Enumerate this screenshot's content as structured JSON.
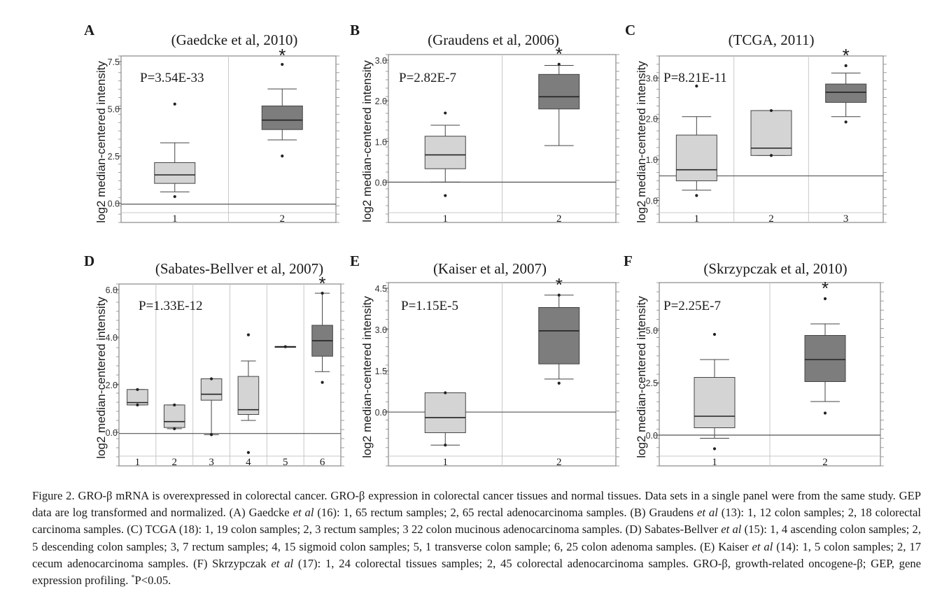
{
  "figure": {
    "colors": {
      "normal_box": "#d4d4d4",
      "tumor_box": "#7d7d7d",
      "frame": "#888888",
      "grid": "#c8c8c8"
    }
  },
  "chart_data": [
    {
      "type": "box",
      "panel": "A",
      "title": "(Gaedcke et al, 2010)",
      "ylabel": "log2 median-centered intensity",
      "pvalue": "P=3.54E-33",
      "yticks": [
        "0.0",
        "2.5",
        "5.0",
        "7.5"
      ],
      "ylim": [
        -0.5,
        7.5
      ],
      "baseline": -0.05,
      "significance": {
        "group": 2,
        "label": "*"
      },
      "groups": [
        {
          "label": "1",
          "min": 0.6,
          "q1": 1.05,
          "median": 1.5,
          "q3": 2.15,
          "max": 3.2,
          "outliers": [
            5.25,
            0.35
          ],
          "color": "normal"
        },
        {
          "label": "2",
          "min": 3.35,
          "q1": 3.9,
          "median": 4.4,
          "q3": 5.15,
          "max": 6.05,
          "outliers": [
            7.35,
            2.5
          ],
          "color": "tumor"
        }
      ]
    },
    {
      "type": "box",
      "panel": "B",
      "title": "(Graudens et al, 2006)",
      "ylabel": "log2 median-centered intensity",
      "pvalue": "P=2.82E-7",
      "yticks": [
        "0.0",
        "1.0",
        "2.0",
        "3.0"
      ],
      "ylim": [
        -0.75,
        3.0
      ],
      "baseline": 0.0,
      "significance": {
        "group": 2,
        "label": "*"
      },
      "groups": [
        {
          "label": "1",
          "min": 0.0,
          "q1": 0.33,
          "median": 0.67,
          "q3": 1.13,
          "max": 1.4,
          "outliers": [
            1.7,
            -0.33
          ],
          "color": "normal"
        },
        {
          "label": "2",
          "min": 0.9,
          "q1": 1.8,
          "median": 2.1,
          "q3": 2.65,
          "max": 2.87,
          "outliers": [
            2.9
          ],
          "color": "tumor"
        }
      ]
    },
    {
      "type": "box",
      "panel": "C",
      "title": "(TCGA, 2011)",
      "ylabel": "log2 median-centered intensity",
      "pvalue": "P=8.21E-11",
      "yticks": [
        "0.0",
        "1.0",
        "2.0",
        "3.0"
      ],
      "ylim": [
        -0.3,
        3.4
      ],
      "baseline": 0.6,
      "significance": {
        "group": 3,
        "label": "*"
      },
      "groups": [
        {
          "label": "1",
          "min": 0.25,
          "q1": 0.48,
          "median": 0.75,
          "q3": 1.6,
          "max": 2.05,
          "outliers": [
            2.8,
            0.12
          ],
          "color": "normal"
        },
        {
          "label": "2",
          "min": 1.1,
          "q1": 1.1,
          "median": 1.28,
          "q3": 2.2,
          "max": 2.2,
          "outliers": [
            2.2,
            1.1
          ],
          "color": "normal"
        },
        {
          "label": "3",
          "min": 2.05,
          "q1": 2.4,
          "median": 2.65,
          "q3": 2.85,
          "max": 3.12,
          "outliers": [
            3.3,
            1.92
          ],
          "color": "tumor"
        }
      ]
    },
    {
      "type": "box",
      "panel": "D",
      "title": "(Sabates-Bellver et al, 2007)",
      "ylabel": "log2 median-centered intensity",
      "pvalue": "P=1.33E-12",
      "yticks": [
        "0.0",
        "2.0",
        "4.0",
        "6.0"
      ],
      "ylim": [
        -1.0,
        6.0
      ],
      "baseline": -0.05,
      "significance": {
        "group": 6,
        "label": "*"
      },
      "groups": [
        {
          "label": "1",
          "min": 1.15,
          "q1": 1.15,
          "median": 1.25,
          "q3": 1.8,
          "max": 1.8,
          "outliers": [
            1.8,
            1.15
          ],
          "color": "normal"
        },
        {
          "label": "2",
          "min": 0.15,
          "q1": 0.2,
          "median": 0.45,
          "q3": 1.15,
          "max": 1.15,
          "outliers": [
            1.15,
            0.15
          ],
          "color": "normal"
        },
        {
          "label": "3",
          "min": -0.1,
          "q1": 1.35,
          "median": 1.6,
          "q3": 2.25,
          "max": 2.25,
          "outliers": [
            2.25,
            -0.1
          ],
          "color": "normal"
        },
        {
          "label": "4",
          "min": 0.5,
          "q1": 0.75,
          "median": 0.95,
          "q3": 2.35,
          "max": 3.0,
          "outliers": [
            4.1,
            -0.85
          ],
          "color": "normal"
        },
        {
          "label": "5",
          "min": 3.6,
          "q1": 3.6,
          "median": 3.6,
          "q3": 3.6,
          "max": 3.6,
          "outliers": [
            3.6
          ],
          "color": "normal"
        },
        {
          "label": "6",
          "min": 2.55,
          "q1": 3.2,
          "median": 3.85,
          "q3": 4.5,
          "max": 5.85,
          "outliers": [
            5.85,
            2.1
          ],
          "color": "tumor"
        }
      ]
    },
    {
      "type": "box",
      "panel": "E",
      "title": "(Kaiser et al, 2007)",
      "ylabel": "log2 median-centered intensity",
      "pvalue": "P=1.15E-5",
      "yticks": [
        "0.0",
        "1.5",
        "3.0",
        "4.5"
      ],
      "ylim": [
        -1.6,
        4.5
      ],
      "baseline": 0.0,
      "significance": {
        "group": 2,
        "label": "*"
      },
      "groups": [
        {
          "label": "1",
          "min": -1.2,
          "q1": -0.75,
          "median": -0.2,
          "q3": 0.7,
          "max": 0.7,
          "outliers": [
            0.7,
            -1.2
          ],
          "color": "normal"
        },
        {
          "label": "2",
          "min": 1.2,
          "q1": 1.75,
          "median": 2.95,
          "q3": 3.8,
          "max": 4.25,
          "outliers": [
            4.25,
            1.05
          ],
          "color": "tumor"
        }
      ]
    },
    {
      "type": "box",
      "panel": "F",
      "title": "(Skrzypczak et al, 2010)",
      "ylabel": "log2 median-centered intensity",
      "pvalue": "P=2.25E-7",
      "yticks": [
        "0.0",
        "2.5",
        "5.0"
      ],
      "ylim": [
        -1.0,
        7.0
      ],
      "baseline": 0.0,
      "significance": {
        "group": 2,
        "label": "*"
      },
      "groups": [
        {
          "label": "1",
          "min": -0.15,
          "q1": 0.35,
          "median": 0.9,
          "q3": 2.75,
          "max": 3.6,
          "outliers": [
            4.8,
            -0.65
          ],
          "color": "normal"
        },
        {
          "label": "2",
          "min": 1.6,
          "q1": 2.55,
          "median": 3.6,
          "q3": 4.75,
          "max": 5.3,
          "outliers": [
            6.5,
            1.05
          ],
          "color": "tumor"
        }
      ]
    }
  ],
  "caption": [
    {
      "t": "Figure 2. GRO-β mRNA is overexpressed in colorectal cancer. GRO-β expression in colorectal cancer tissues and normal tissues. Data sets in a single panel were from the same study. GEP data are log transformed and normalized. (A) Gaedcke "
    },
    {
      "t": "et al",
      "i": true
    },
    {
      "t": " (16): 1, 65 rectum samples; 2, 65 rectal adenocarcinoma samples. (B) Graudens "
    },
    {
      "t": "et al",
      "i": true
    },
    {
      "t": " (13): 1, 12 colon samples; 2, 18 colorectal carcinoma samples. (C) TCGA (18): 1, 19 colon samples; 2, 3 rectum samples; 3 22 colon mucinous adenocarcinoma samples. (D) Sabates-Bellver "
    },
    {
      "t": "et al",
      "i": true
    },
    {
      "t": " (15): 1, 4 ascending colon samples; 2, 5 descending colon samples; 3, 7 rectum samples; 4, 15 sigmoid colon samples; 5, 1 transverse colon sample; 6, 25 colon adenoma samples. (E) Kaiser "
    },
    {
      "t": "et al",
      "i": true
    },
    {
      "t": " (14): 1, 5 colon samples; 2, 17 cecum adenocarcinoma samples. (F) Skrzypczak "
    },
    {
      "t": "et al",
      "i": true
    },
    {
      "t": " (17): 1, 24 colorectal tissues samples; 2, 45 colorectal adenocarcinoma samples. GRO-β, growth-related oncogene-β; GEP, gene expression profiling. "
    },
    {
      "t": "*",
      "sup": true
    },
    {
      "t": "P<0.05."
    }
  ]
}
